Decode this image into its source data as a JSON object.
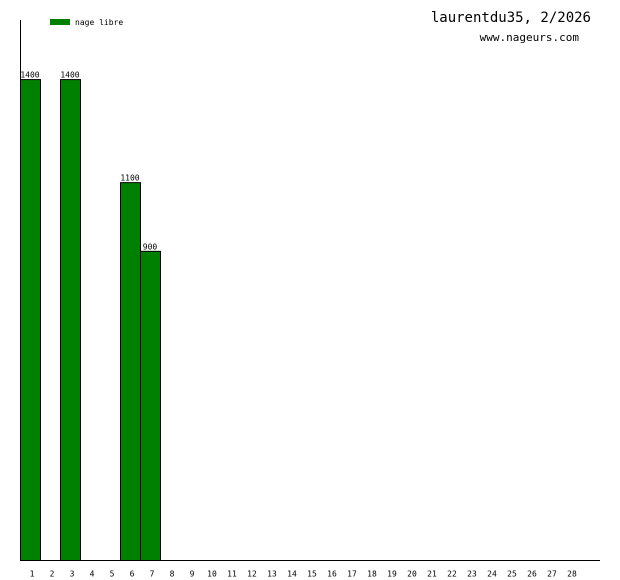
{
  "chart_data": {
    "type": "bar",
    "title": "laurentdu35, 2/2026",
    "subtitle": "www.nageurs.com",
    "categories": [
      "1",
      "2",
      "3",
      "4",
      "5",
      "6",
      "7",
      "8",
      "9",
      "10",
      "11",
      "12",
      "13",
      "14",
      "15",
      "16",
      "17",
      "18",
      "19",
      "20",
      "21",
      "22",
      "23",
      "24",
      "25",
      "26",
      "27",
      "28"
    ],
    "series": [
      {
        "name": "nage libre",
        "color": "#008000",
        "values": [
          1400,
          null,
          1400,
          null,
          null,
          1100,
          900,
          null,
          null,
          null,
          null,
          null,
          null,
          null,
          null,
          null,
          null,
          null,
          null,
          null,
          null,
          null,
          null,
          null,
          null,
          null,
          null,
          null
        ]
      }
    ],
    "ylim": [
      0,
      1572
    ]
  }
}
